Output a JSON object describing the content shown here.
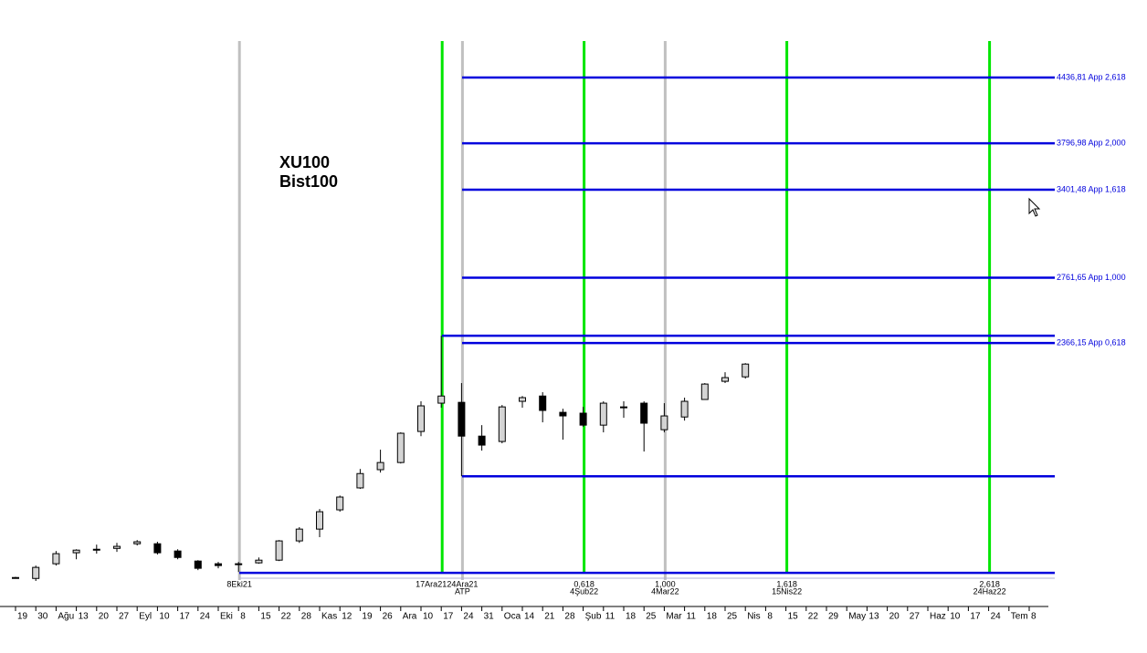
{
  "chart_data": {
    "type": "candlestick",
    "title": [
      "XU100",
      "Bist100"
    ],
    "log": true,
    "ylim": [
      1268,
      5330
    ],
    "categories": [
      "19",
      "30",
      "Ağu",
      "13",
      "20",
      "27",
      "Eyl",
      "10",
      "17",
      "24",
      "Eki",
      "8",
      "15",
      "22",
      "28",
      "Kas",
      "12",
      "19",
      "26",
      "Ara",
      "10",
      "17",
      "24",
      "31",
      "Oca",
      "14",
      "21",
      "28",
      "Şub",
      "11",
      "18",
      "25",
      "Mar",
      "11",
      "18",
      "25",
      "Nis",
      "8",
      "15",
      "22",
      "29",
      "May",
      "13",
      "20",
      "27",
      "Haz",
      "10",
      "17",
      "24",
      "Tem",
      "8"
    ],
    "open": [
      1358,
      1355,
      1403,
      1440,
      1452,
      1455,
      1471,
      1471,
      1446,
      1412,
      1403,
      1403,
      1406,
      1415,
      1481,
      1523,
      1594,
      1679,
      1753,
      1783,
      1919,
      2052,
      2056,
      1898,
      1874,
      2061,
      2087,
      2008,
      2004,
      1948,
      2034,
      2052,
      1927,
      1986,
      2070,
      2161,
      2184,
      null,
      null,
      null,
      null,
      null,
      null,
      null,
      null,
      null,
      null,
      null,
      null,
      null,
      null
    ],
    "high": [
      1360,
      1397,
      1446,
      1452,
      1468,
      1474,
      1484,
      1478,
      1452,
      1415,
      1409,
      1409,
      1424,
      1484,
      1530,
      1597,
      1649,
      1756,
      1838,
      1915,
      2061,
      2407,
      2152,
      1948,
      2043,
      2087,
      2106,
      2025,
      2034,
      2061,
      2061,
      2061,
      2052,
      2079,
      2152,
      2208,
      2256,
      null,
      null,
      null,
      null,
      null,
      null,
      null,
      null,
      null,
      null,
      null,
      null,
      null,
      null
    ],
    "low": [
      1356,
      1347,
      1397,
      1418,
      1437,
      1443,
      1465,
      1434,
      1418,
      1382,
      1388,
      1376,
      1403,
      1412,
      1474,
      1494,
      1587,
      1675,
      1741,
      1779,
      1898,
      2030,
      1726,
      1834,
      1866,
      2030,
      1961,
      1882,
      1940,
      1915,
      1982,
      1830,
      1915,
      1969,
      2070,
      2152,
      2175,
      null,
      null,
      null,
      null,
      null,
      null,
      null,
      null,
      null,
      null,
      null,
      null,
      null,
      null
    ],
    "close": [
      1358,
      1391,
      1437,
      1449,
      1449,
      1462,
      1478,
      1440,
      1424,
      1388,
      1397,
      1403,
      1415,
      1481,
      1523,
      1587,
      1643,
      1737,
      1783,
      1911,
      2039,
      2087,
      1898,
      1858,
      2034,
      2079,
      2017,
      1991,
      1948,
      2052,
      2034,
      1957,
      1991,
      2061,
      2147,
      2180,
      2251,
      null,
      null,
      null,
      null,
      null,
      null,
      null,
      null,
      null,
      null,
      null,
      null,
      null,
      null
    ],
    "up_color": "#d4d4d4",
    "down_color": "#000000",
    "level_color": "#0000dd",
    "levels": [
      {
        "value": 4436.81,
        "label": "4436,81 App 2,618"
      },
      {
        "value": 3796.98,
        "label": "3796,98 App 2,000"
      },
      {
        "value": 3401.48,
        "label": "3401,48 App 1,618"
      },
      {
        "value": 2761.65,
        "label": "2761,65 App 1,000"
      },
      2407,
      {
        "value": 2366.15,
        "label": "2366,15 App 0,618"
      },
      1726,
      1373
    ],
    "vlines": [
      {
        "labels": [
          "8Eki21"
        ],
        "color": "#c0c0c0"
      },
      {
        "labels": [
          "17Ara21"
        ],
        "color": "#00e600"
      },
      {
        "labels": [
          "24Ara21",
          "ATP"
        ],
        "color": "#c0c0c0"
      },
      {
        "labels": [
          "0,618",
          "4Şub22"
        ],
        "color": "#00e600"
      },
      {
        "labels": [
          "1,000",
          "4Mar22"
        ],
        "color": "#c0c0c0"
      },
      {
        "labels": [
          "1,618",
          "15Nis22"
        ],
        "color": "#00e600"
      },
      {
        "labels": [
          "2,618",
          "24Haz22"
        ],
        "color": "#00e600"
      }
    ]
  }
}
